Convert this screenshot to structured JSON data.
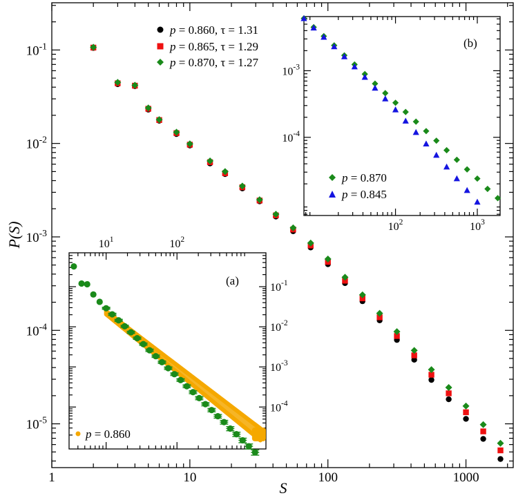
{
  "chart_data": {
    "main": {
      "type": "scatter",
      "xscale": "log",
      "yscale": "log",
      "xlim": [
        1,
        2200
      ],
      "ylim": [
        3.4e-06,
        0.32
      ],
      "xlabel": "S",
      "ylabel": "P(S)",
      "x_ticks": [
        {
          "value": 1,
          "label": "1"
        },
        {
          "value": 10,
          "label": "10"
        },
        {
          "value": 100,
          "label": "100"
        },
        {
          "value": 1000,
          "label": "1000"
        }
      ],
      "y_ticks": [
        {
          "value": 0.1,
          "base": "10",
          "exp": "-1"
        },
        {
          "value": 0.01,
          "base": "10",
          "exp": "-2"
        },
        {
          "value": 0.001,
          "base": "10",
          "exp": "-3"
        },
        {
          "value": 0.0001,
          "base": "10",
          "exp": "-4"
        },
        {
          "value": 1e-05,
          "base": "10",
          "exp": "-5"
        }
      ],
      "x": [
        2,
        3,
        4,
        5,
        6,
        8,
        10,
        14,
        18,
        24,
        32,
        42,
        56,
        75,
        100,
        133,
        178,
        237,
        316,
        422,
        562,
        750,
        1000,
        1334,
        1778
      ],
      "series": [
        {
          "name": "p = 0.860, τ = 1.31",
          "p": "0.860",
          "tau": "1.31",
          "color": "#000000",
          "marker": "circle",
          "values": [
            0.105,
            0.043,
            0.041,
            0.023,
            0.0175,
            0.0126,
            0.0095,
            0.0061,
            0.0047,
            0.0033,
            0.0024,
            0.00165,
            0.00115,
            0.00077,
            0.00051,
            0.00032,
            0.000205,
            0.000128,
            7.9e-05,
            4.85e-05,
            2.95e-05,
            1.83e-05,
            1.13e-05,
            6.9e-06,
            4.2e-06
          ]
        },
        {
          "name": "p = 0.865, τ = 1.29",
          "p": "0.865",
          "tau": "1.29",
          "color": "#ee1111",
          "marker": "square",
          "values": [
            0.106,
            0.044,
            0.0415,
            0.0235,
            0.0178,
            0.0129,
            0.0097,
            0.0063,
            0.0048,
            0.0034,
            0.00245,
            0.0017,
            0.0012,
            0.00081,
            0.00054,
            0.00034,
            0.00022,
            0.000138,
            8.7e-05,
            5.4e-05,
            3.35e-05,
            2.12e-05,
            1.33e-05,
            8.3e-06,
            5.2e-06
          ]
        },
        {
          "name": "p = 0.870, τ = 1.27",
          "p": "0.870",
          "tau": "1.27",
          "color": "#1a8a1a",
          "marker": "diamond",
          "values": [
            0.107,
            0.045,
            0.042,
            0.024,
            0.018,
            0.0132,
            0.0099,
            0.0065,
            0.005,
            0.0035,
            0.0025,
            0.00175,
            0.00125,
            0.00086,
            0.00058,
            0.00037,
            0.00024,
            0.000152,
            9.7e-05,
            6.1e-05,
            3.8e-05,
            2.45e-05,
            1.55e-05,
            9.8e-06,
            6.2e-06
          ]
        }
      ]
    },
    "inset_b": {
      "label": "(b)",
      "type": "scatter",
      "xscale": "log",
      "yscale": "log",
      "xlim": [
        7.6,
        1900
      ],
      "ylim": [
        6.7e-06,
        0.0065
      ],
      "x_ticks": [
        {
          "value": 100,
          "base": "10",
          "exp": "2"
        },
        {
          "value": 1000,
          "base": "10",
          "exp": "3"
        }
      ],
      "y_ticks": [
        {
          "value": 0.001,
          "base": "10",
          "exp": "-3"
        },
        {
          "value": 0.0001,
          "base": "10",
          "exp": "-4"
        }
      ],
      "series": [
        {
          "name": "p = 0.870",
          "p": "0.870",
          "color": "#1a8a1a",
          "marker": "diamond",
          "x": [
            7.6,
            10,
            13.3,
            17.8,
            23.7,
            31.6,
            42.2,
            56.2,
            75,
            100,
            133,
            178,
            237,
            316,
            422,
            562,
            750,
            1000,
            1334,
            1778
          ],
          "values": [
            0.0061,
            0.0045,
            0.0033,
            0.0024,
            0.0017,
            0.00124,
            0.00089,
            0.00064,
            0.00046,
            0.00033,
            0.00024,
            0.000172,
            0.000124,
            8.9e-05,
            6.4e-05,
            4.6e-05,
            3.3e-05,
            2.4e-05,
            1.68e-05,
            1.22e-05
          ]
        },
        {
          "name": "p = 0.845",
          "p": "0.845",
          "color": "#1515e0",
          "marker": "triangle",
          "x": [
            7.6,
            10,
            13.3,
            17.8,
            23.7,
            31.6,
            42.2,
            56.2,
            75,
            100,
            133,
            178,
            237,
            316,
            422,
            562,
            750,
            1000
          ],
          "values": [
            0.0061,
            0.0044,
            0.0032,
            0.0023,
            0.00163,
            0.00115,
            0.0008,
            0.00055,
            0.00038,
            0.00026,
            0.000176,
            0.000119,
            8e-05,
            5.4e-05,
            3.6e-05,
            2.4e-05,
            1.6e-05,
            1.07e-05
          ]
        }
      ]
    },
    "inset_a": {
      "label": "(a)",
      "type": "scatter",
      "xscale": "log",
      "yscale": "log",
      "xlim": [
        3,
        1800
      ],
      "ylim": [
        9e-06,
        0.7
      ],
      "x_ticks": [
        {
          "value": 10,
          "base": "10",
          "exp": "1"
        },
        {
          "value": 100,
          "base": "10",
          "exp": "2"
        }
      ],
      "y_ticks": [
        {
          "value": 0.1,
          "base": "10",
          "exp": "-1"
        },
        {
          "value": 0.01,
          "base": "10",
          "exp": "-2"
        },
        {
          "value": 0.001,
          "base": "10",
          "exp": "-3"
        },
        {
          "value": 0.0001,
          "base": "10",
          "exp": "-4"
        }
      ],
      "legend": {
        "p": "0.860",
        "color": "#f5a800"
      },
      "band_color": "#f5a800",
      "band": {
        "x": [
          10,
          1500
        ],
        "y_low": [
          0.0205,
          1.48e-05
        ],
        "y_high": [
          0.0245,
          2.92e-05
        ]
      },
      "points_color": "#1a8a1a",
      "x": [
        3.5,
        4.5,
        5.4,
        6.6,
        8.1,
        10,
        12.2,
        15,
        18.3,
        22.4,
        27.4,
        33.5,
        41,
        50.2,
        61.4,
        75.1,
        91.9,
        112.4,
        137.5,
        168.3,
        205.9,
        251.9,
        308.2,
        377.1,
        461.3,
        564.4,
        690.5,
        844.8,
        1033.6,
        1264.6
      ],
      "values": [
        0.32,
        0.12,
        0.115,
        0.064,
        0.042,
        0.029,
        0.0205,
        0.0145,
        0.0103,
        0.0073,
        0.0052,
        0.0037,
        0.0026,
        0.00185,
        0.00131,
        0.00093,
        0.00066,
        0.00047,
        0.00033,
        0.000235,
        0.000167,
        0.000118,
        8.4e-05,
        5.9e-05,
        4.2e-05,
        2.9e-05,
        2.1e-05,
        1.48e-05,
        1.05e-05,
        7.4e-06
      ],
      "errors": [
        0,
        0,
        0,
        0,
        0,
        0.0018,
        0.0013,
        0.0009,
        0.00065,
        0.00047,
        0.00034,
        0.00025,
        0.00018,
        0.00013,
        9.4e-05,
        6.9e-05,
        5e-05,
        3.7e-05,
        2.7e-05,
        2e-05,
        1.5e-05,
        1.1e-05,
        8.2e-06,
        6.1e-06,
        4.5e-06,
        3.4e-06,
        2.6e-06,
        1.9e-06,
        1.5e-06,
        1.1e-06
      ]
    }
  }
}
